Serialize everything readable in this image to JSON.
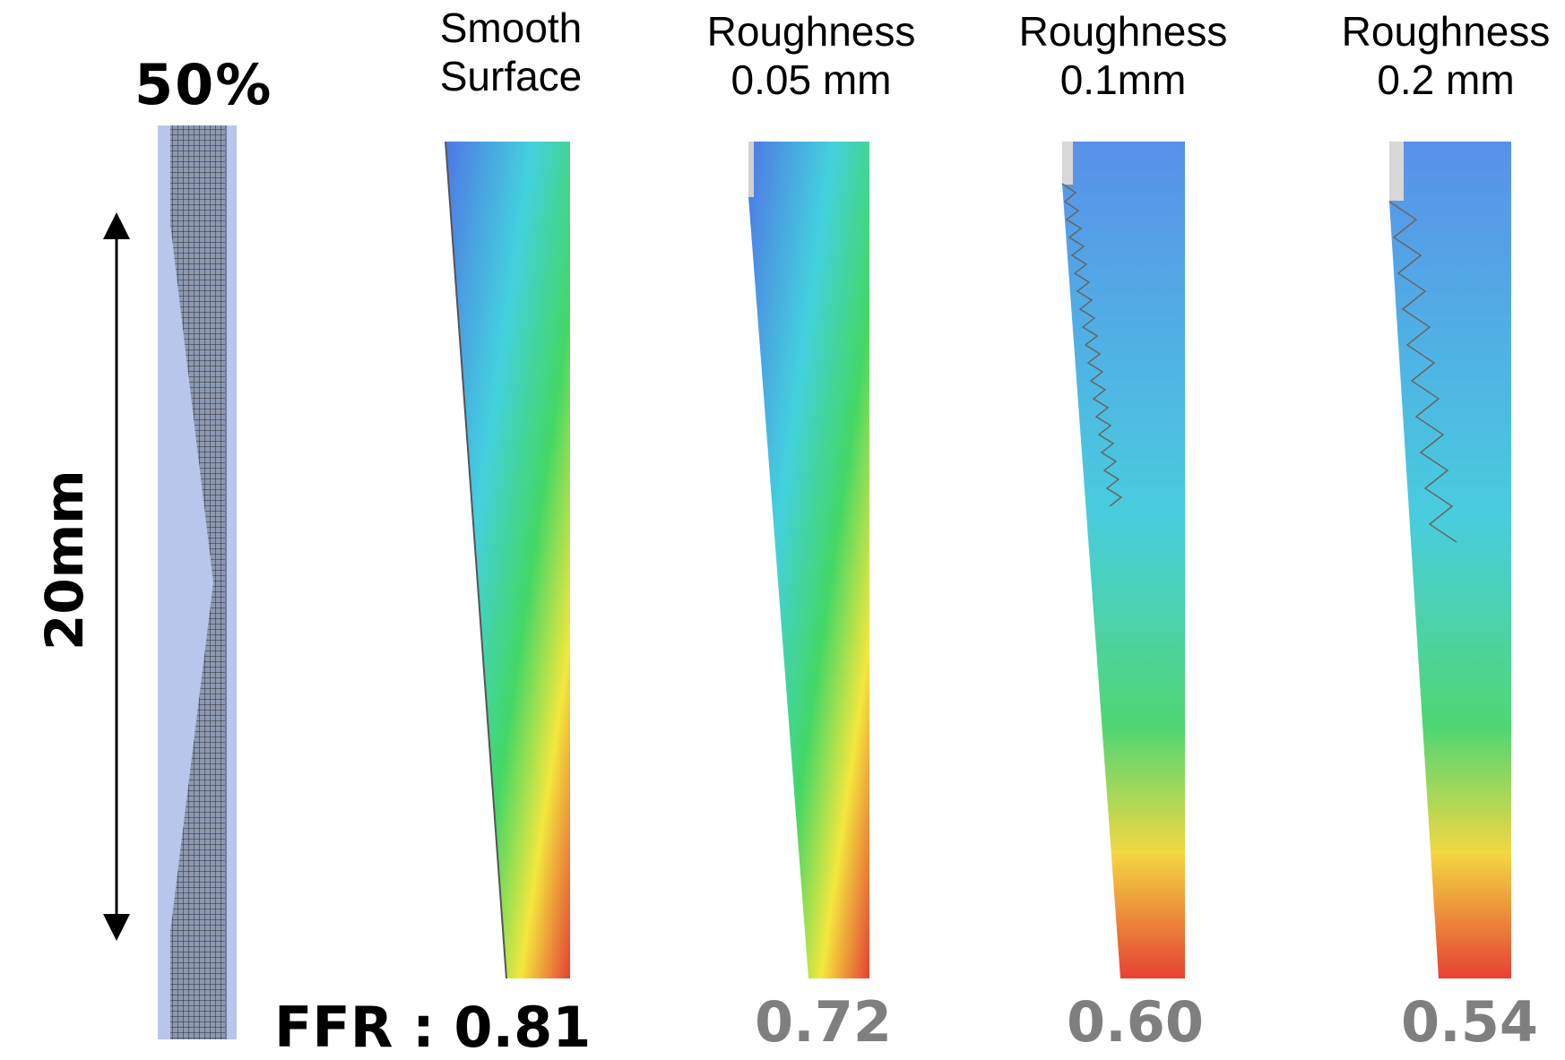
{
  "stenosis_label": "50%",
  "length_label": "20mm",
  "panels": [
    {
      "title_line1": "Smooth",
      "title_line2": "Surface",
      "ffr_text": "FFR : 0.81",
      "ffr_value": 0.81,
      "roughness_mm": 0
    },
    {
      "title_line1": "Roughness",
      "title_line2": "0.05 mm",
      "ffr_text": "0.72",
      "ffr_value": 0.72,
      "roughness_mm": 0.05
    },
    {
      "title_line1": "Roughness",
      "title_line2": "0.1mm",
      "ffr_text": "0.60",
      "ffr_value": 0.6,
      "roughness_mm": 0.1
    },
    {
      "title_line1": "Roughness",
      "title_line2": "0.2 mm",
      "ffr_text": "0.54",
      "ffr_value": 0.54,
      "roughness_mm": 0.2
    }
  ],
  "colors": {
    "mesh_fill": "#b7c6ea",
    "mesh_lines": "#2a2a2a",
    "ffr_primary": "#000000",
    "ffr_secondary": "#7f7f7f",
    "velocity_low": "#2f5fe0",
    "velocity_high": "#e01f12"
  }
}
